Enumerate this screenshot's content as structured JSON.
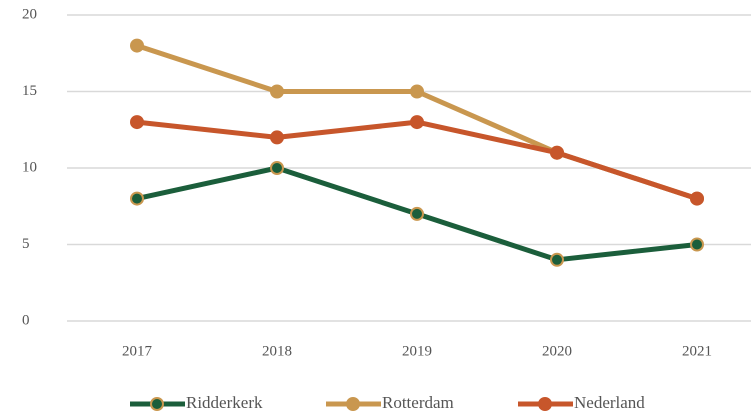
{
  "chart_data": {
    "type": "line",
    "categories": [
      "2017",
      "2018",
      "2019",
      "2020",
      "2021"
    ],
    "series": [
      {
        "name": "Ridderkerk",
        "color": "#1b5e3b",
        "marker_edge_color": "#c9974f",
        "values": [
          8,
          10,
          7,
          4,
          5
        ]
      },
      {
        "name": "Rotterdam",
        "color": "#c9974f",
        "marker_edge_color": "#c9974f",
        "values": [
          18,
          15,
          15,
          11,
          8
        ]
      },
      {
        "name": "Nederland",
        "color": "#c7562b",
        "marker_edge_color": "#c7562b",
        "values": [
          13,
          12,
          13,
          11,
          8
        ]
      }
    ],
    "ylim": [
      0,
      20
    ],
    "yticks": [
      0,
      5,
      10,
      15,
      20
    ],
    "grid": true,
    "legend": "bottom"
  }
}
